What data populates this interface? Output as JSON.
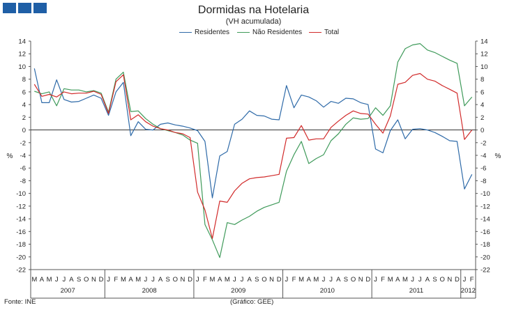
{
  "header": {
    "logo_icon": "gee-logo-icon",
    "logo_color": "#1f5fa6"
  },
  "footer": {
    "source": "Fonte: INE",
    "credit": "(Gráfico: GEE)"
  },
  "chart_data": {
    "type": "line",
    "title": "Dormidas na Hotelaria",
    "subtitle": "(VH acumulada)",
    "ylabel_left": "%",
    "ylabel_right": "%",
    "ylim": [
      -22,
      14
    ],
    "yticks": [
      -22,
      -20,
      -18,
      -16,
      -14,
      -12,
      -10,
      -8,
      -6,
      -4,
      -2,
      0,
      2,
      4,
      6,
      8,
      10,
      12,
      14
    ],
    "month_labels": [
      "M",
      "A",
      "M",
      "J",
      "J",
      "A",
      "S",
      "O",
      "N",
      "D",
      "J",
      "F",
      "M",
      "A",
      "M",
      "J",
      "J",
      "A",
      "S",
      "O",
      "N",
      "D",
      "J",
      "F",
      "M",
      "A",
      "M",
      "J",
      "J",
      "A",
      "S",
      "O",
      "N",
      "D",
      "J",
      "F",
      "M",
      "A",
      "M",
      "J",
      "J",
      "A",
      "S",
      "O",
      "N",
      "D",
      "J",
      "F",
      "M",
      "A",
      "M",
      "J",
      "J",
      "A",
      "S",
      "O",
      "N",
      "D",
      "J",
      "F"
    ],
    "years": [
      {
        "label": "2007",
        "start": 0,
        "end": 9
      },
      {
        "label": "2008",
        "start": 10,
        "end": 21
      },
      {
        "label": "2009",
        "start": 22,
        "end": 33
      },
      {
        "label": "2010",
        "start": 34,
        "end": 45
      },
      {
        "label": "2011",
        "start": 46,
        "end": 57
      },
      {
        "label": "2012",
        "start": 58,
        "end": 59
      }
    ],
    "series": [
      {
        "name": "Residentes",
        "color": "#2e6aa8",
        "values": [
          9.7,
          4.3,
          4.3,
          7.9,
          4.8,
          4.4,
          4.5,
          5.0,
          5.5,
          5.0,
          2.3,
          6.0,
          7.5,
          -0.9,
          1.3,
          0.1,
          0.0,
          0.9,
          1.1,
          0.8,
          0.6,
          0.3,
          -0.1,
          -1.8,
          -10.7,
          -4.1,
          -3.4,
          0.9,
          1.7,
          3.0,
          2.3,
          2.2,
          1.7,
          1.6,
          7.0,
          3.5,
          5.5,
          5.2,
          4.6,
          3.6,
          4.5,
          4.2,
          5.0,
          4.9,
          4.3,
          4.0,
          -3.0,
          -3.6,
          -0.1,
          1.6,
          -1.4,
          0.1,
          0.2,
          0.0,
          -0.4,
          -1.0,
          -1.7,
          -1.8,
          -9.3,
          -7.0
        ]
      },
      {
        "name": "Não Residentes",
        "color": "#3f9a5a",
        "values": [
          6.1,
          5.7,
          6.0,
          3.8,
          6.5,
          6.3,
          6.3,
          6.0,
          6.2,
          5.8,
          2.8,
          8.0,
          9.1,
          2.9,
          3.0,
          1.8,
          0.9,
          0.2,
          -0.1,
          -0.4,
          -0.8,
          -1.6,
          -2.1,
          -14.9,
          -17.3,
          -20.1,
          -14.6,
          -14.9,
          -14.2,
          -13.6,
          -12.8,
          -12.2,
          -11.8,
          -11.4,
          -6.5,
          -3.9,
          -1.8,
          -5.3,
          -4.5,
          -3.9,
          -1.7,
          -0.6,
          0.9,
          1.9,
          1.7,
          1.8,
          3.5,
          2.3,
          3.8,
          10.7,
          12.8,
          13.4,
          13.6,
          12.6,
          12.2,
          11.6,
          11.0,
          10.5,
          3.8,
          5.2
        ]
      },
      {
        "name": "Total",
        "color": "#d12a2a",
        "values": [
          7.2,
          5.3,
          5.6,
          5.2,
          6.0,
          5.7,
          5.8,
          5.8,
          6.1,
          5.6,
          2.6,
          7.6,
          8.7,
          1.6,
          2.4,
          1.3,
          0.6,
          0.2,
          0.0,
          -0.4,
          -0.6,
          -1.2,
          -9.8,
          -12.6,
          -17.1,
          -11.2,
          -11.4,
          -9.6,
          -8.4,
          -7.7,
          -7.5,
          -7.4,
          -7.2,
          -7.0,
          -1.3,
          -1.2,
          0.7,
          -1.6,
          -1.4,
          -1.4,
          0.4,
          1.4,
          2.3,
          3.0,
          2.6,
          2.5,
          0.9,
          -0.5,
          2.2,
          7.2,
          7.5,
          8.6,
          8.9,
          8.0,
          7.7,
          7.0,
          6.4,
          5.8,
          -1.5,
          0.0
        ]
      }
    ]
  }
}
